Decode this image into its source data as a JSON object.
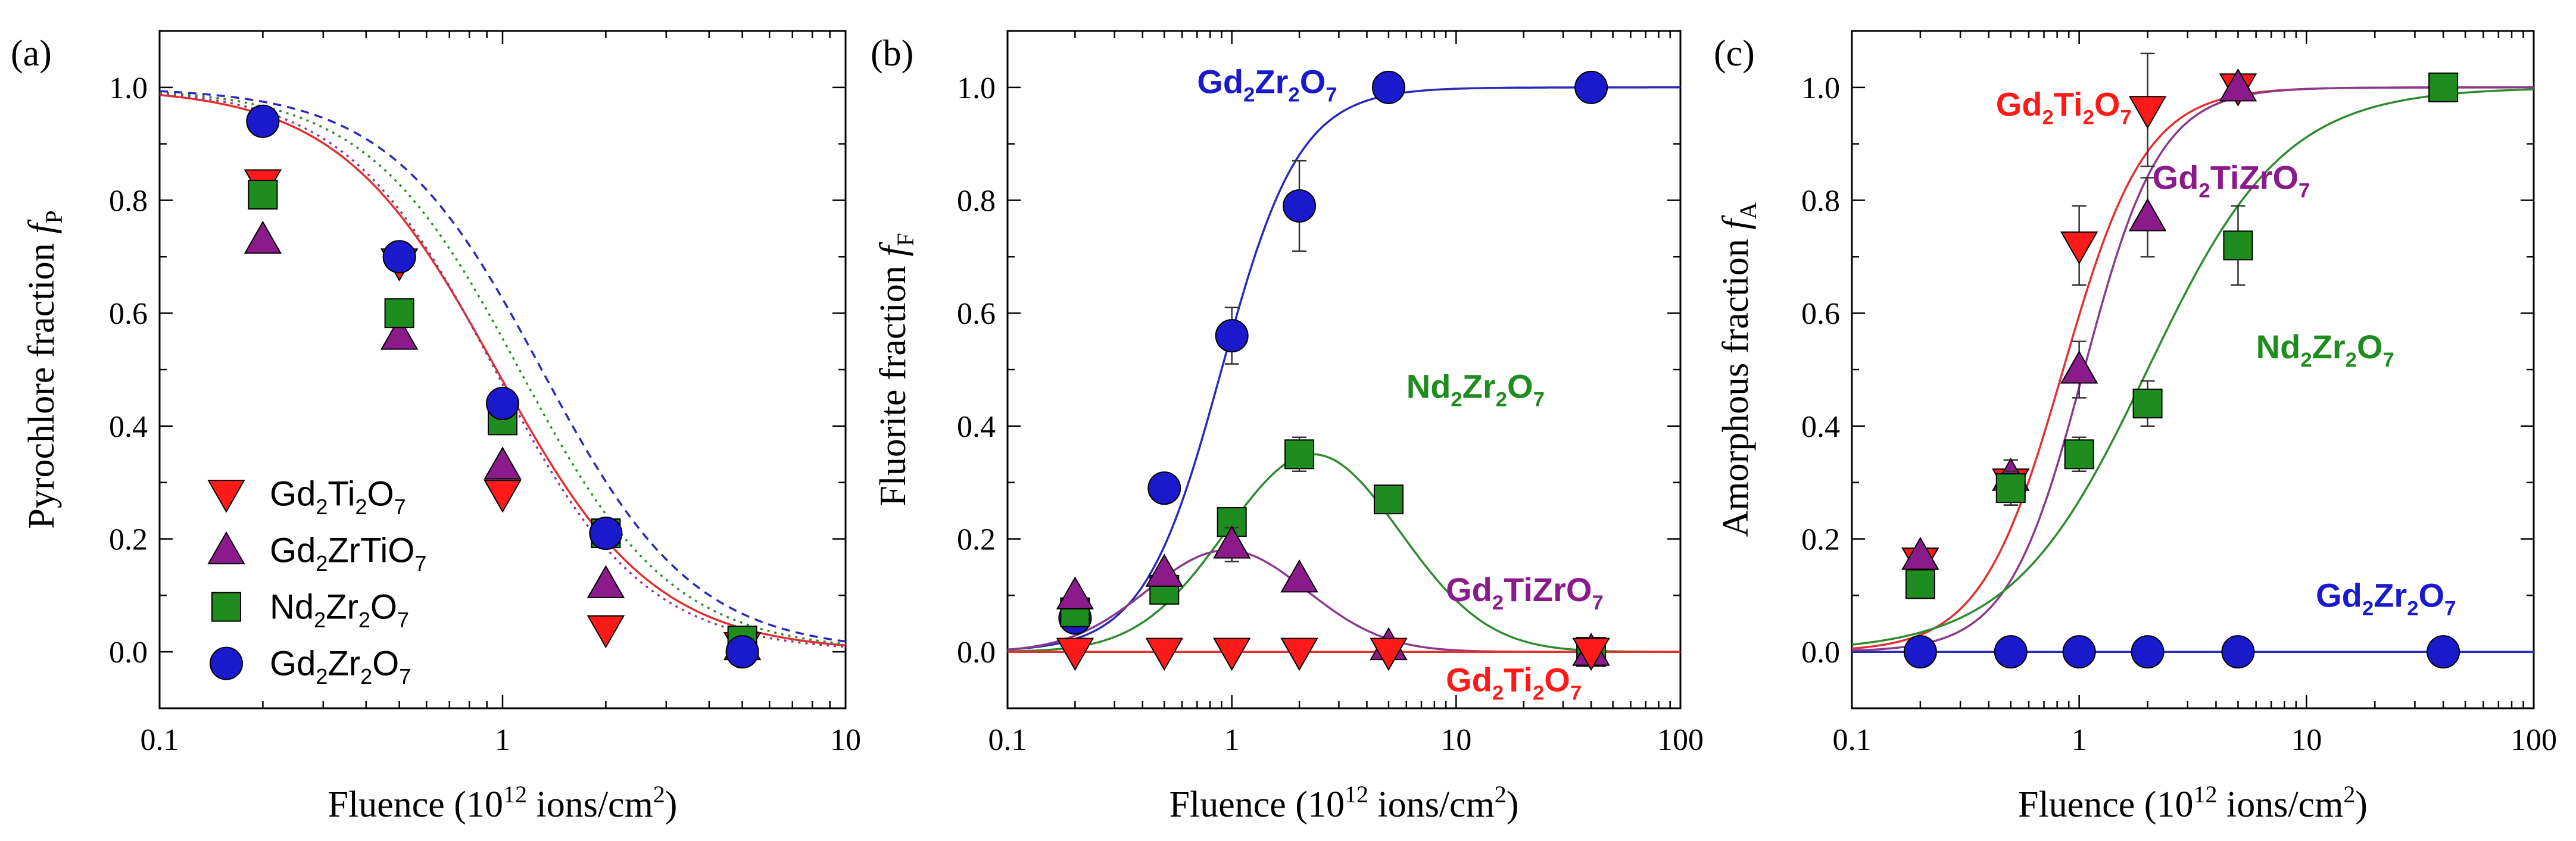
{
  "figure": {
    "panels": [
      "(a)",
      "(b)",
      "(c)"
    ],
    "x_label": {
      "base": "Fluence (10",
      "sup": "12",
      "mid": " ions/cm",
      "sup2": "2",
      "end": ")"
    }
  },
  "colors": {
    "Gd2Ti2O7": "#ff1a1a",
    "Gd2ZrTiO7": "#8b1a8b",
    "Nd2Zr2O7": "#1e8c1e",
    "Gd2Zr2O7": "#1a1acc",
    "line_Gd2Ti2O7": "#e03030",
    "line_Gd2ZrTiO7": "#8b3a8b",
    "line_Nd2Zr2O7": "#2e8b2e",
    "line_Gd2Zr2O7": "#2a2ab8"
  },
  "chart_data": [
    {
      "type": "scatter",
      "panel_label": "(a)",
      "ylabel": "Pyrochlore fraction",
      "ylabel_sym": "f",
      "ylabel_sub": "P",
      "xlabel": "Fluence (10^12 ions/cm^2)",
      "xscale": "log",
      "xlim": [
        0.1,
        10
      ],
      "ylim": [
        -0.1,
        1.1
      ],
      "xticks": [
        0.1,
        1,
        10
      ],
      "xtick_labels": [
        "0.1",
        "1",
        "10"
      ],
      "yticks": [
        0.0,
        0.2,
        0.4,
        0.6,
        0.8,
        1.0
      ],
      "ytick_labels": [
        "0.0",
        "0.2",
        "0.4",
        "0.6",
        "0.8",
        "1.0"
      ],
      "legend": {
        "placement": "bottom-left",
        "entries": [
          {
            "series": "Gd2Ti2O7",
            "base": "Gd",
            "s1": "2",
            "m1": "Ti",
            "s2": "2",
            "m2": "O",
            "s3": "7"
          },
          {
            "series": "Gd2ZrTiO7",
            "base": "Gd",
            "s1": "2",
            "m1": "ZrTiO",
            "s2": "7",
            "m2": "",
            "s3": ""
          },
          {
            "series": "Nd2Zr2O7",
            "base": "Nd",
            "s1": "2",
            "m1": "Zr",
            "s2": "2",
            "m2": "O",
            "s3": "7"
          },
          {
            "series": "Gd2Zr2O7",
            "base": "Gd",
            "s1": "2",
            "m1": "Zr",
            "s2": "2",
            "m2": "O",
            "s3": "7"
          }
        ]
      },
      "series": [
        {
          "name": "Gd2Ti2O7",
          "marker": "triangle-down",
          "x": [
            0.2,
            0.5,
            1.0,
            2.0,
            5.0
          ],
          "y": [
            0.83,
            0.69,
            0.28,
            0.04,
            0.01
          ]
        },
        {
          "name": "Gd2ZrTiO7",
          "marker": "triangle-up",
          "x": [
            0.2,
            0.5,
            1.0,
            2.0,
            5.0
          ],
          "y": [
            0.73,
            0.56,
            0.33,
            0.12,
            0.01
          ]
        },
        {
          "name": "Nd2Zr2O7",
          "marker": "square",
          "x": [
            0.2,
            0.5,
            1.0,
            2.0,
            5.0
          ],
          "y": [
            0.81,
            0.6,
            0.41,
            0.21,
            0.02
          ]
        },
        {
          "name": "Gd2Zr2O7",
          "marker": "circle",
          "x": [
            0.2,
            0.5,
            1.0,
            2.0,
            5.0
          ],
          "y": [
            0.94,
            0.7,
            0.44,
            0.21,
            0.0
          ]
        }
      ],
      "fits": [
        {
          "name": "Gd2Ti2O7",
          "style": "solid",
          "x0": 0.96,
          "slope": 1.9
        },
        {
          "name": "Gd2ZrTiO7",
          "style": "dotted",
          "x0": 0.95,
          "slope": 2.0
        },
        {
          "name": "Nd2Zr2O7",
          "style": "dotted",
          "x0": 1.12,
          "slope": 1.95
        },
        {
          "name": "Gd2Zr2O7",
          "style": "dashed",
          "x0": 1.3,
          "slope": 1.95
        }
      ]
    },
    {
      "type": "scatter",
      "panel_label": "(b)",
      "ylabel": "Fluorite fraction",
      "ylabel_sym": "f",
      "ylabel_sub": "F",
      "xlabel": "Fluence (10^12 ions/cm^2)",
      "xscale": "log",
      "xlim": [
        0.1,
        100
      ],
      "ylim": [
        -0.1,
        1.1
      ],
      "xticks": [
        0.1,
        1,
        10,
        100
      ],
      "xtick_labels": [
        "0.1",
        "1",
        "10",
        "100"
      ],
      "yticks": [
        0.0,
        0.2,
        0.4,
        0.6,
        0.8,
        1.0
      ],
      "ytick_labels": [
        "0.0",
        "0.2",
        "0.4",
        "0.6",
        "0.8",
        "1.0"
      ],
      "annotations": [
        {
          "series": "Gd2Zr2O7",
          "base": "Gd",
          "s1": "2",
          "m1": "Zr",
          "s2": "2",
          "m2": "O",
          "s3": "7",
          "x": 0.7,
          "y": 0.99
        },
        {
          "series": "Nd2Zr2O7",
          "base": "Nd",
          "s1": "2",
          "m1": "Zr",
          "s2": "2",
          "m2": "O",
          "s3": "7",
          "x": 6.0,
          "y": 0.45
        },
        {
          "series": "Gd2ZrTiO7",
          "base": "Gd",
          "s1": "2",
          "m1": "TiZrO",
          "s2": "7",
          "m2": "",
          "s3": "",
          "x": 9.0,
          "y": 0.09
        },
        {
          "series": "Gd2Ti2O7",
          "base": "Gd",
          "s1": "2",
          "m1": "Ti",
          "s2": "2",
          "m2": "O",
          "s3": "7",
          "x": 9.0,
          "y": -0.07
        }
      ],
      "series": [
        {
          "name": "Gd2Zr2O7",
          "marker": "circle",
          "x": [
            0.2,
            0.5,
            1.0,
            2.0,
            5.0,
            40.0
          ],
          "y": [
            0.06,
            0.29,
            0.56,
            0.79,
            1.0,
            1.0
          ],
          "err": [
            0.0,
            0.02,
            0.05,
            0.08,
            0.0,
            0.0
          ]
        },
        {
          "name": "Nd2Zr2O7",
          "marker": "square",
          "x": [
            0.2,
            0.5,
            1.0,
            2.0,
            5.0,
            40.0
          ],
          "y": [
            0.07,
            0.11,
            0.23,
            0.35,
            0.27,
            0.0
          ],
          "err": [
            0.0,
            0.0,
            0.0,
            0.03,
            0.02,
            0.0
          ]
        },
        {
          "name": "Gd2ZrTiO7",
          "marker": "triangle-up",
          "x": [
            0.2,
            0.5,
            1.0,
            2.0,
            5.0,
            40.0
          ],
          "y": [
            0.1,
            0.14,
            0.19,
            0.13,
            0.01,
            0.0
          ],
          "err": [
            0.0,
            0.0,
            0.03,
            0.0,
            0.0,
            0.0
          ]
        },
        {
          "name": "Gd2Ti2O7",
          "marker": "triangle-down",
          "x": [
            0.2,
            0.5,
            1.0,
            2.0,
            5.0,
            40.0
          ],
          "y": [
            0.0,
            0.0,
            0.0,
            0.0,
            0.0,
            0.0
          ],
          "err": [
            0,
            0,
            0,
            0,
            0,
            0
          ]
        }
      ],
      "fits": [
        {
          "name": "Gd2Zr2O7",
          "kind": "sigmoid",
          "x0": 0.9,
          "slope": 2.5,
          "amp": 1.0
        },
        {
          "name": "Nd2Zr2O7",
          "kind": "bump",
          "peak_x": 2.3,
          "peak_y": 0.35,
          "width": 0.55
        },
        {
          "name": "Gd2ZrTiO7",
          "kind": "bump",
          "peak_x": 0.95,
          "peak_y": 0.18,
          "width": 0.5
        },
        {
          "name": "Gd2Ti2O7",
          "kind": "flat",
          "y": 0.0
        }
      ]
    },
    {
      "type": "scatter",
      "panel_label": "(c)",
      "ylabel": "Amorphous fraction",
      "ylabel_sym": "f",
      "ylabel_sub": "A",
      "xlabel": "Fluence (10^12 ions/cm^2)",
      "xscale": "log",
      "xlim": [
        0.1,
        100
      ],
      "ylim": [
        -0.1,
        1.1
      ],
      "xticks": [
        0.1,
        1,
        10,
        100
      ],
      "xtick_labels": [
        "0.1",
        "1",
        "10",
        "100"
      ],
      "yticks": [
        0.0,
        0.2,
        0.4,
        0.6,
        0.8,
        1.0
      ],
      "ytick_labels": [
        "0.0",
        "0.2",
        "0.4",
        "0.6",
        "0.8",
        "1.0"
      ],
      "annotations": [
        {
          "series": "Gd2Ti2O7",
          "base": "Gd",
          "s1": "2",
          "m1": "Ti",
          "s2": "2",
          "m2": "O",
          "s3": "7",
          "x": 0.43,
          "y": 0.95
        },
        {
          "series": "Gd2ZrTiO7",
          "base": "Gd",
          "s1": "2",
          "m1": "TiZrO",
          "s2": "7",
          "m2": "",
          "s3": "",
          "x": 2.1,
          "y": 0.82
        },
        {
          "series": "Nd2Zr2O7",
          "base": "Nd",
          "s1": "2",
          "m1": "Zr",
          "s2": "2",
          "m2": "O",
          "s3": "7",
          "x": 6.0,
          "y": 0.52
        },
        {
          "series": "Gd2Zr2O7",
          "base": "Gd",
          "s1": "2",
          "m1": "Zr",
          "s2": "2",
          "m2": "O",
          "s3": "7",
          "x": 11.0,
          "y": 0.08
        }
      ],
      "series": [
        {
          "name": "Gd2Ti2O7",
          "marker": "triangle-down",
          "x": [
            0.2,
            0.5,
            1.0,
            2.0,
            5.0
          ],
          "y": [
            0.16,
            0.3,
            0.72,
            0.96,
            1.0
          ],
          "err": [
            0.0,
            0.04,
            0.07,
            0.1,
            0.0
          ]
        },
        {
          "name": "Gd2ZrTiO7",
          "marker": "triangle-up",
          "x": [
            0.2,
            0.5,
            1.0,
            2.0,
            5.0
          ],
          "y": [
            0.17,
            0.31,
            0.5,
            0.77,
            1.0
          ],
          "err": [
            0.0,
            0.03,
            0.05,
            0.07,
            0.0
          ]
        },
        {
          "name": "Nd2Zr2O7",
          "marker": "square",
          "x": [
            0.2,
            0.5,
            1.0,
            2.0,
            5.0,
            40.0
          ],
          "y": [
            0.12,
            0.29,
            0.35,
            0.44,
            0.72,
            1.0
          ],
          "err": [
            0.0,
            0.03,
            0.03,
            0.04,
            0.07,
            0.0
          ]
        },
        {
          "name": "Gd2Zr2O7",
          "marker": "circle",
          "x": [
            0.2,
            0.5,
            1.0,
            2.0,
            5.0,
            40.0
          ],
          "y": [
            0.0,
            0.0,
            0.0,
            0.0,
            0.0,
            0.0
          ],
          "err": [
            0,
            0,
            0,
            0,
            0,
            0
          ]
        }
      ],
      "fits": [
        {
          "name": "Gd2Ti2O7",
          "kind": "sigmoid",
          "x0": 0.85,
          "slope": 2.4,
          "amp": 1.0
        },
        {
          "name": "Gd2ZrTiO7",
          "kind": "sigmoid",
          "x0": 1.05,
          "slope": 2.6,
          "amp": 1.0
        },
        {
          "name": "Nd2Zr2O7",
          "kind": "sigmoid",
          "x0": 2.0,
          "slope": 1.45,
          "amp": 1.0
        },
        {
          "name": "Gd2Zr2O7",
          "kind": "flat",
          "y": 0.0
        }
      ]
    }
  ]
}
